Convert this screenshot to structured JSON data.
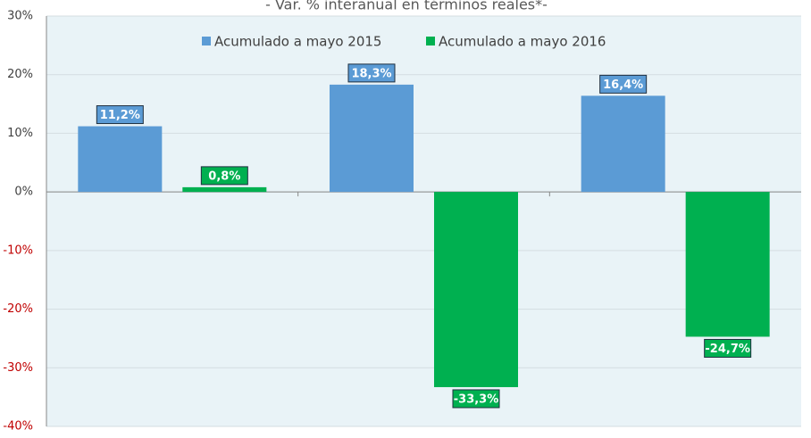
{
  "chart_data": {
    "type": "bar",
    "title": "- Var. % interanual en términos reales*-",
    "categories": [
      null,
      null,
      null
    ],
    "series": [
      {
        "name": "Acumulado a mayo 2015",
        "color": "#5b9bd5",
        "values": [
          11.2,
          18.3,
          16.4
        ],
        "value_labels": [
          "11,2%",
          "18,3%",
          "16,4%"
        ]
      },
      {
        "name": "Acumulado a mayo 2016",
        "color": "#00b050",
        "values": [
          0.8,
          -33.3,
          -24.7
        ],
        "value_labels": [
          "0,8%",
          "-33,3%",
          "-24,7%"
        ]
      }
    ],
    "ylim": [
      -40,
      30
    ],
    "yticks": [
      {
        "value": -40,
        "label": "-40%"
      },
      {
        "value": -30,
        "label": "-30%"
      },
      {
        "value": -20,
        "label": "-20%"
      },
      {
        "value": -10,
        "label": "-10%"
      },
      {
        "value": 0,
        "label": "0%"
      },
      {
        "value": 10,
        "label": "10%"
      },
      {
        "value": 20,
        "label": "20%"
      },
      {
        "value": 30,
        "label": "30%"
      }
    ],
    "grid": true,
    "legend": "top",
    "tick_color": "#404040",
    "negative_tick_color": "#c00000",
    "plot_background": "#e9f3f7"
  }
}
